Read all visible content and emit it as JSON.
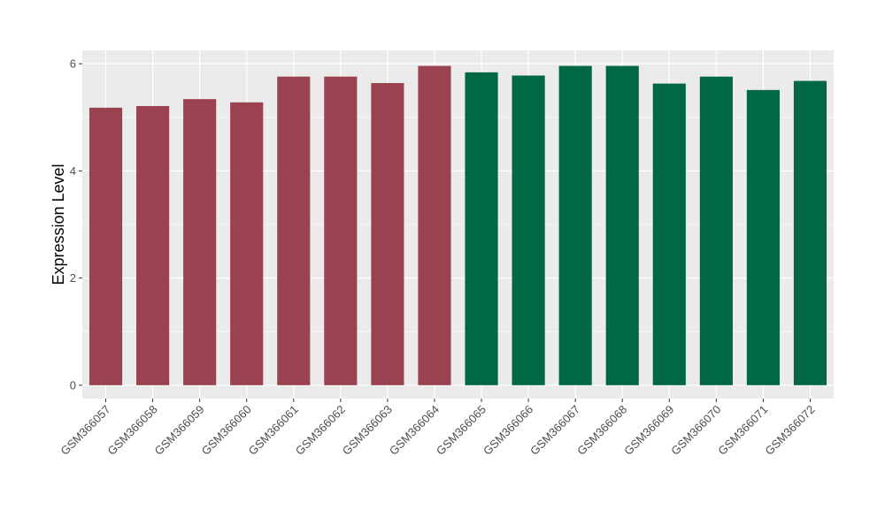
{
  "chart_data": {
    "type": "bar",
    "title": "",
    "xlabel": "",
    "ylabel": "Expression Level",
    "ylim": [
      -0.25,
      6.25
    ],
    "yticks": [
      0,
      2,
      4,
      6
    ],
    "grid": true,
    "legend": "none",
    "categories": [
      "GSM366057",
      "GSM366058",
      "GSM366059",
      "GSM366060",
      "GSM366061",
      "GSM366062",
      "GSM366063",
      "GSM366064",
      "GSM366065",
      "GSM366066",
      "GSM366067",
      "GSM366068",
      "GSM366069",
      "GSM366070",
      "GSM366071",
      "GSM366072"
    ],
    "values": [
      5.18,
      5.21,
      5.34,
      5.28,
      5.76,
      5.76,
      5.64,
      5.96,
      5.84,
      5.78,
      5.96,
      5.96,
      5.63,
      5.76,
      5.51,
      5.68
    ],
    "groups": [
      0,
      0,
      0,
      0,
      0,
      0,
      0,
      0,
      1,
      1,
      1,
      1,
      1,
      1,
      1,
      1
    ],
    "colors": {
      "group_colors": [
        "#9B4250",
        "#006845"
      ],
      "panel_background": "#EBEBEB",
      "grid": "#FFFFFF",
      "axis_text": "#4D4D4D"
    }
  }
}
